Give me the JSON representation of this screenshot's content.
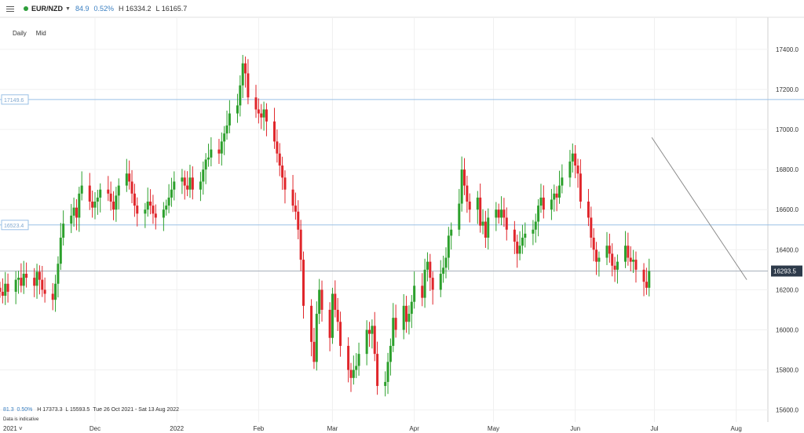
{
  "toolbar": {
    "symbol": "EUR/NZD",
    "change": "84.9",
    "change_pct": "0.52%",
    "high": "H 16334.2",
    "low": "L 16165.7"
  },
  "subheader": {
    "interval": "Daily",
    "price_type": "Mid"
  },
  "footer": {
    "change": "81.3",
    "change_pct": "0.50%",
    "high": "H 17373.3",
    "low": "L 15593.5",
    "range": "Tue 26 Oct 2021 - Sat 13 Aug 2022",
    "note": "Data is indicative",
    "year": "2021"
  },
  "colors": {
    "up": "#2ca02c",
    "down": "#e0262b",
    "level": "#9ac0e6",
    "current": "#2d3a4a",
    "trend": "#8a8a8a"
  },
  "chart_data": {
    "type": "candlestick",
    "title": "",
    "ylim": [
      15540,
      17560
    ],
    "yticks": [
      15600,
      15800,
      16000,
      16200,
      16400,
      16600,
      16800,
      17000,
      17200,
      17400
    ],
    "ytick_labels": [
      "15600.0",
      "15800.0",
      "16000.0",
      "16200.0",
      "16400.0",
      "16600.0",
      "16800.0",
      "17000.0",
      "17200.0",
      "17400.0"
    ],
    "xdomain": [
      "2021-10-26",
      "2022-08-13"
    ],
    "xticks": [
      {
        "date": "2021-12-01",
        "label": "Dec"
      },
      {
        "date": "2022-01-01",
        "label": "2022"
      },
      {
        "date": "2022-02-01",
        "label": "Feb"
      },
      {
        "date": "2022-03-01",
        "label": "Mar"
      },
      {
        "date": "2022-04-01",
        "label": "Apr"
      },
      {
        "date": "2022-05-01",
        "label": "May"
      },
      {
        "date": "2022-06-01",
        "label": "Jun"
      },
      {
        "date": "2022-07-01",
        "label": "Jul"
      },
      {
        "date": "2022-08-01",
        "label": "Aug"
      }
    ],
    "levels": [
      {
        "value": 17149.6,
        "label": "17149.6"
      },
      {
        "value": 16523.4,
        "label": "16523.4"
      }
    ],
    "current": {
      "value": 16293.5,
      "label": "16293.5"
    },
    "trendline": {
      "start": [
        "2022-06-30",
        16960
      ],
      "end": [
        "2022-08-05",
        16250
      ]
    },
    "closes": [
      16190,
      16170,
      16230,
      16190,
      16250,
      16260,
      16220,
      16280,
      16260,
      16220,
      16290,
      16250,
      16200,
      16180,
      16150,
      16230,
      16330,
      16460,
      16530,
      16570,
      16610,
      16560,
      16680,
      16720,
      16640,
      16610,
      16640,
      16660,
      16700,
      16680,
      16640,
      16600,
      16670,
      16720,
      16780,
      16740,
      16680,
      16620,
      16580,
      16600,
      16640,
      16620,
      16580,
      16560,
      16600,
      16620,
      16660,
      16700,
      16740,
      16760,
      16720,
      16700,
      16760,
      16700,
      16740,
      16800,
      16850,
      16860,
      16900,
      16880,
      16940,
      16980,
      17020,
      17080,
      17120,
      17220,
      17330,
      17280,
      17160,
      17100,
      17080,
      17060,
      17100,
      17040,
      16940,
      16880,
      16820,
      16760,
      16700,
      16620,
      16590,
      16500,
      16350,
      16120,
      15940,
      15840,
      16080,
      16200,
      16100,
      15960,
      16180,
      16100,
      16040,
      15920,
      15800,
      15760,
      15800,
      15820,
      15880,
      16000,
      15980,
      16020,
      15880,
      15720,
      15740,
      15840,
      15920,
      16060,
      16000,
      16120,
      16040,
      16080,
      16140,
      16220,
      16160,
      16300,
      16340,
      16260,
      16200,
      16280,
      16310,
      16360,
      16470,
      16500,
      16630,
      16800,
      16720,
      16640,
      16600,
      16660,
      16520,
      16540,
      16460,
      16560,
      16600,
      16560,
      16600,
      16560,
      16500,
      16440,
      16380,
      16420,
      16460,
      16480,
      16500,
      16540,
      16620,
      16660,
      16600,
      16650,
      16680,
      16660,
      16720,
      16760,
      16840,
      16880,
      16820,
      16780,
      16640,
      16560,
      16460,
      16400,
      16340,
      16360,
      16420,
      16380,
      16320,
      16300,
      16340,
      16420,
      16360,
      16340,
      16350,
      16300,
      16240,
      16210,
      16293
    ]
  }
}
